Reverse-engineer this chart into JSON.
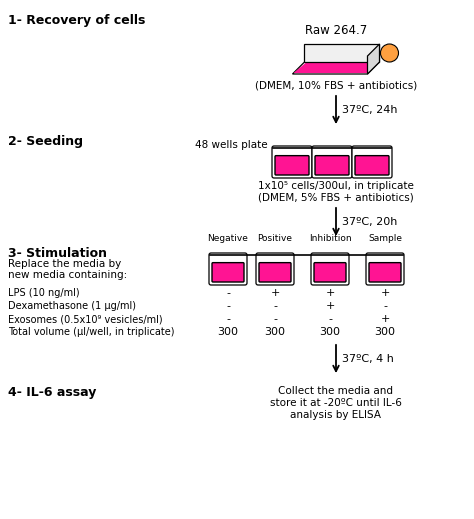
{
  "title": "Raw 264.7",
  "bg_color": "#ffffff",
  "pink": "#FF1493",
  "orange": "#FFA040",
  "black": "#000000",
  "step1_label": "1- Recovery of cells",
  "step2_label": "2- Seeding",
  "step3_label": "3- Stimulation",
  "step4_label": "4- IL-6 assay",
  "step1_sub": "(DMEM, 10% FBS + antibiotics)",
  "arrow1_label": "37ºC, 24h",
  "step2_wells_label": "48 wells plate",
  "step2_sub1": "1x10⁵ cells/300ul, in triplicate",
  "step2_sub2": "(DMEM, 5% FBS + antibiotics)",
  "arrow2_label": "37ºC, 20h",
  "step3_cols": [
    "Negative",
    "Positive",
    "Inhibition",
    "Sample"
  ],
  "step3_replace_line1": "Replace the media by",
  "step3_replace_line2": "new media containing:",
  "row_lps": "LPS (10 ng/ml)",
  "row_dex": "Dexamethasone (1 μg/ml)",
  "row_exo": "Exosomes (0.5x10⁹ vesicles/ml)",
  "row_vol": "Total volume (μl/well, in triplicate)",
  "lps_vals": [
    "-",
    "+",
    "+",
    "+"
  ],
  "dex_vals": [
    "-",
    "-",
    "+",
    "-"
  ],
  "exo_vals": [
    "-",
    "-",
    "-",
    "+"
  ],
  "vol_vals": [
    "300",
    "300",
    "300",
    "300"
  ],
  "arrow3_label": "37ºC, 4 h",
  "step4_sub_line1": "Collect the media and",
  "step4_sub_line2": "store it at -20ºC until IL-6",
  "step4_sub_line3": "analysis by ELISA"
}
